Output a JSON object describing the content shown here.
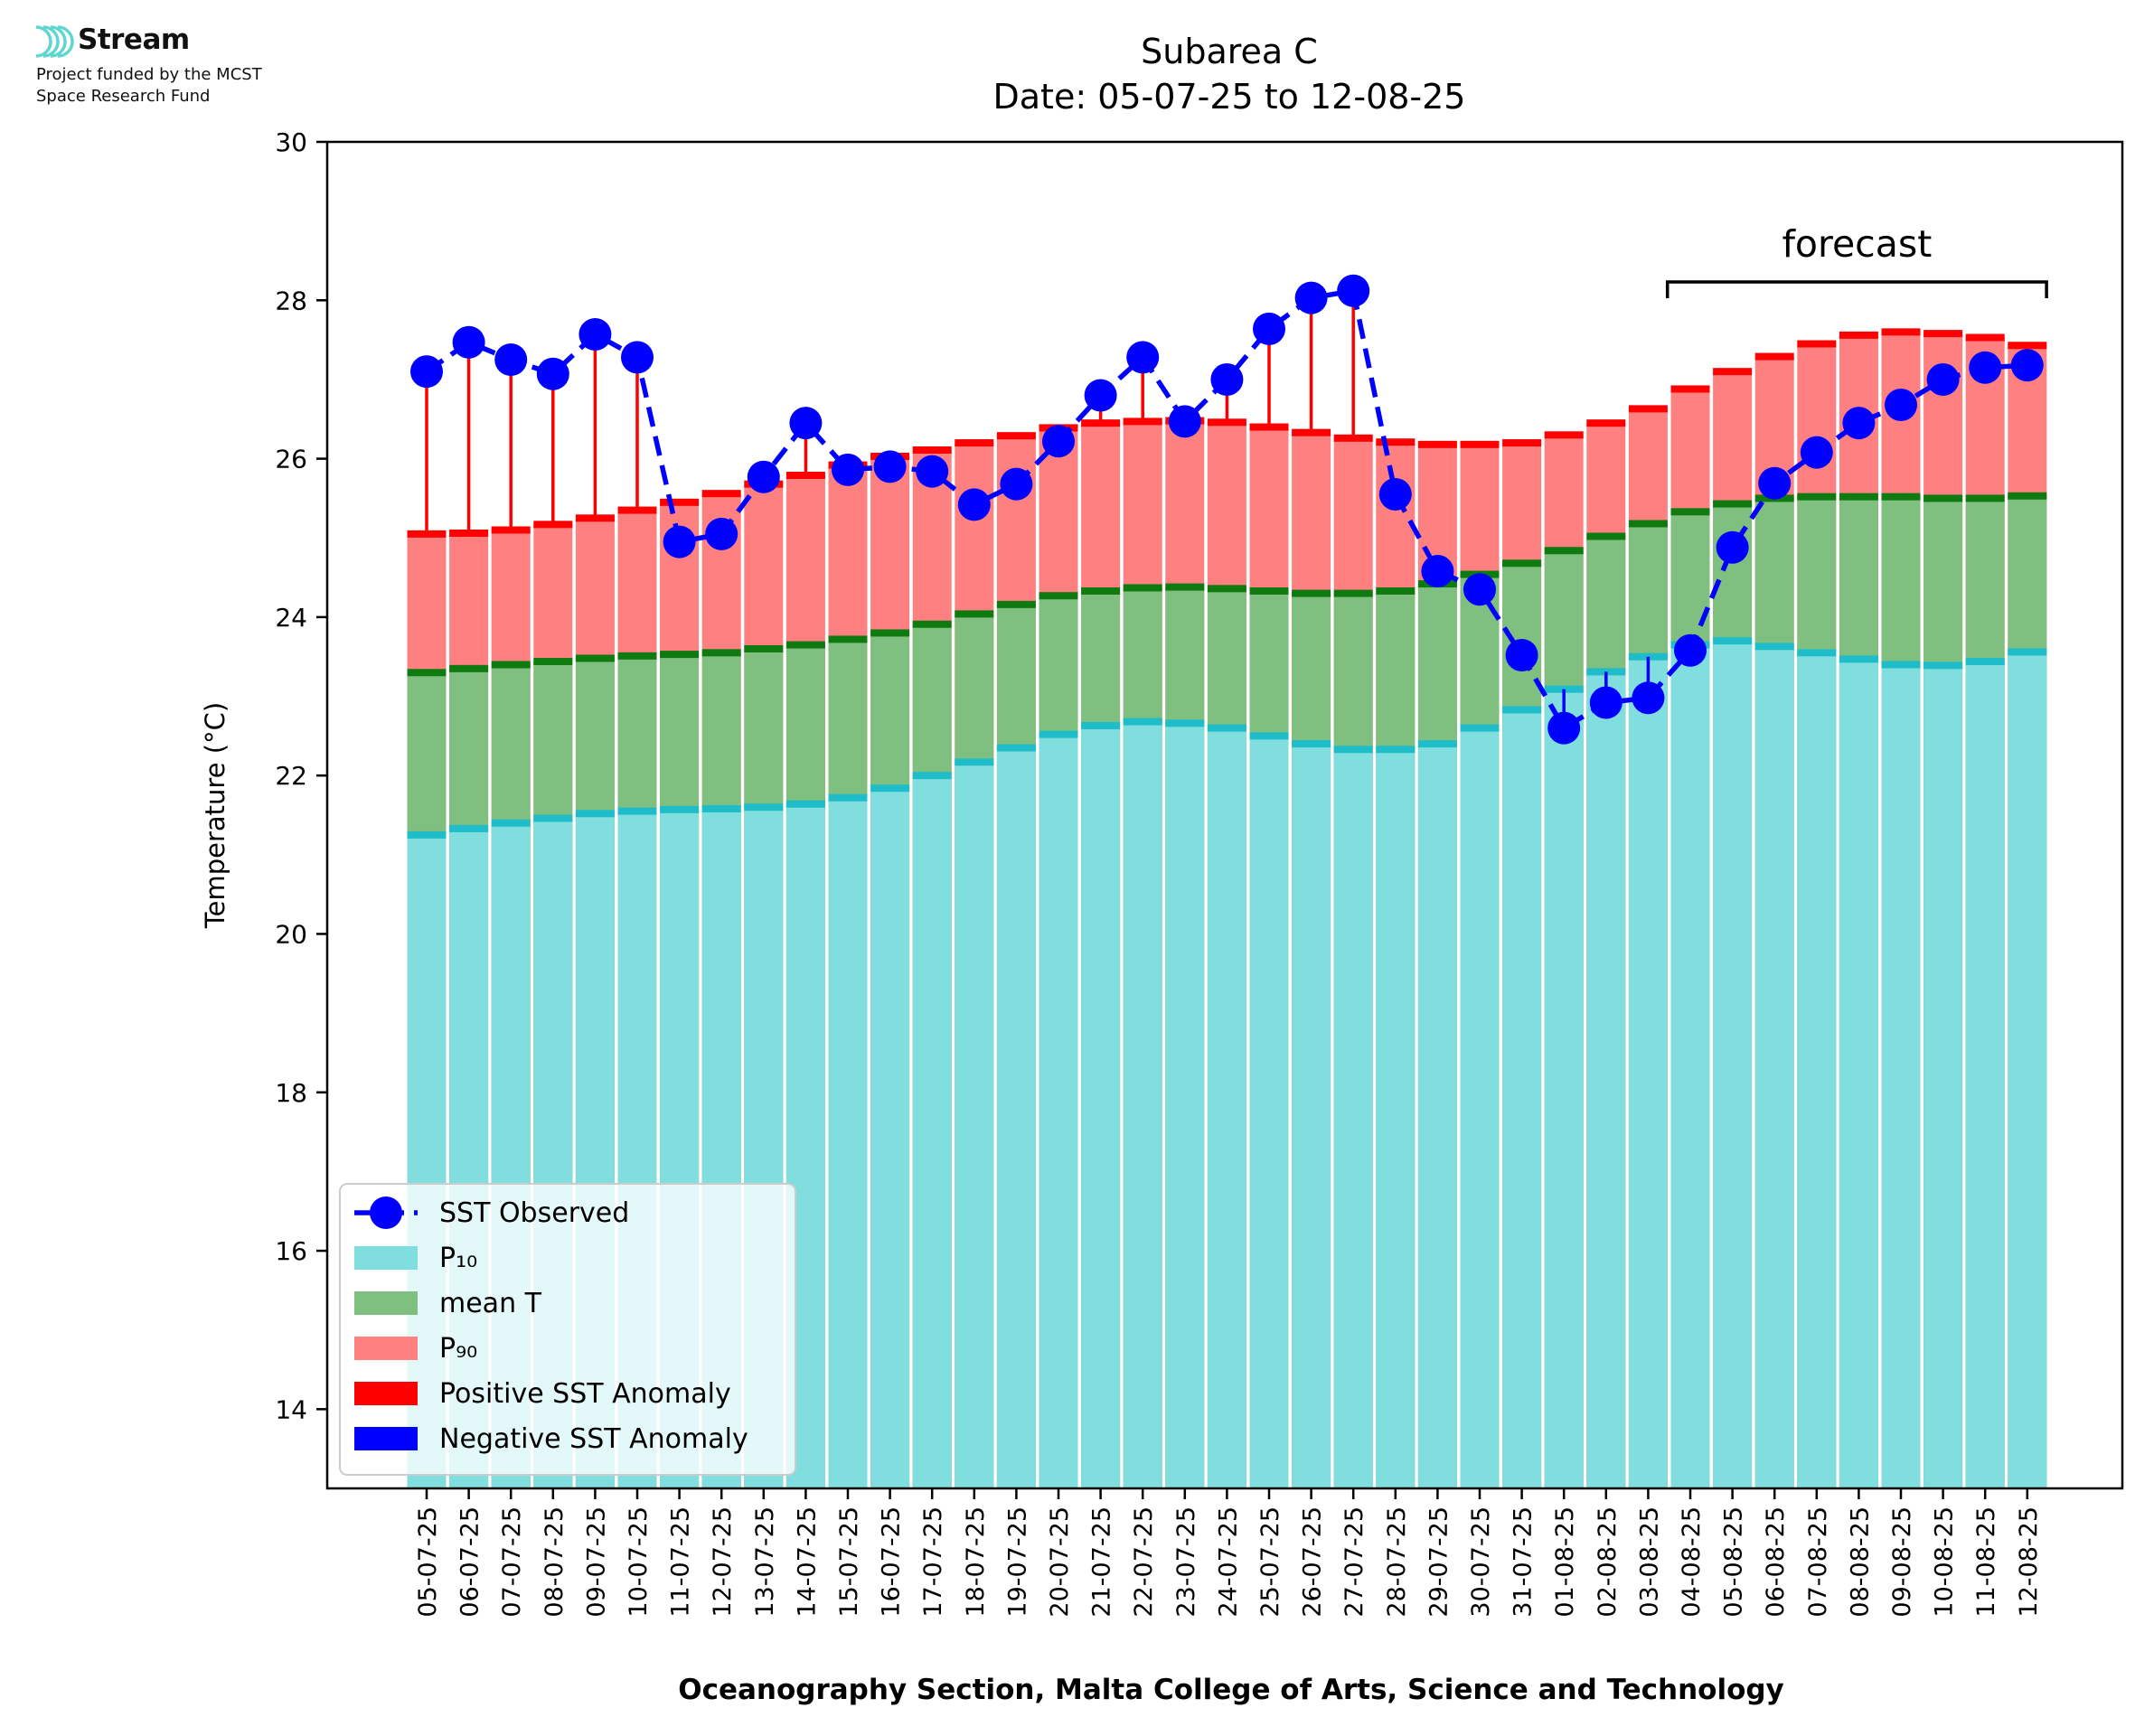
{
  "logo": {
    "name": "Stream",
    "subtitle_line1": "Project funded by the MCST",
    "subtitle_line2": "Space Research Fund"
  },
  "chart_data": {
    "type": "bar",
    "title": "Subarea C",
    "subtitle": "Date: 05-07-25 to 12-08-25",
    "xlabel": "Oceanography Section, Malta College of Arts, Science and Technology",
    "ylabel": "Temperature (°C)",
    "ylim": [
      13,
      30
    ],
    "yticks": [
      14,
      16,
      18,
      20,
      22,
      24,
      26,
      28,
      30
    ],
    "grid": false,
    "legend_position": "bottom-left",
    "annotation": "forecast",
    "forecast_range": [
      "04-08-25",
      "12-08-25"
    ],
    "categories": [
      "05-07-25",
      "06-07-25",
      "07-07-25",
      "08-07-25",
      "09-07-25",
      "10-07-25",
      "11-07-25",
      "12-07-25",
      "13-07-25",
      "14-07-25",
      "15-07-25",
      "16-07-25",
      "17-07-25",
      "18-07-25",
      "19-07-25",
      "20-07-25",
      "21-07-25",
      "22-07-25",
      "23-07-25",
      "24-07-25",
      "25-07-25",
      "26-07-25",
      "27-07-25",
      "28-07-25",
      "29-07-25",
      "30-07-25",
      "31-07-25",
      "01-08-25",
      "02-08-25",
      "03-08-25",
      "04-08-25",
      "05-08-25",
      "06-08-25",
      "07-08-25",
      "08-08-25",
      "09-08-25",
      "10-08-25",
      "11-08-25",
      "12-08-25"
    ],
    "series": [
      {
        "name": "SST Observed",
        "kind": "line",
        "color": "#0000ff",
        "values": [
          27.1,
          27.47,
          27.25,
          27.07,
          27.57,
          27.28,
          24.95,
          25.05,
          25.77,
          26.45,
          25.86,
          25.9,
          25.84,
          25.42,
          25.68,
          26.22,
          26.8,
          27.28,
          26.47,
          27.0,
          27.64,
          28.03,
          28.12,
          25.55,
          24.58,
          24.35,
          23.52,
          22.6,
          22.92,
          22.98,
          23.58,
          24.88,
          25.69,
          26.08,
          26.45,
          26.68,
          27.0,
          27.15,
          27.18
        ]
      },
      {
        "name": "P₁₀",
        "kind": "bar",
        "color": "#80dede",
        "edge_color": "#1fbdc9",
        "values": [
          21.25,
          21.33,
          21.4,
          21.46,
          21.52,
          21.55,
          21.57,
          21.58,
          21.6,
          21.64,
          21.72,
          21.84,
          22.0,
          22.17,
          22.35,
          22.52,
          22.63,
          22.68,
          22.66,
          22.6,
          22.5,
          22.4,
          22.33,
          22.33,
          22.4,
          22.6,
          22.83,
          23.09,
          23.31,
          23.5,
          23.65,
          23.7,
          23.63,
          23.55,
          23.47,
          23.4,
          23.39,
          23.44,
          23.56
        ]
      },
      {
        "name": "mean T",
        "kind": "bar",
        "color": "#7fbf7f",
        "edge_color": "#0f7a0f",
        "values": [
          23.3,
          23.35,
          23.4,
          23.44,
          23.48,
          23.51,
          23.53,
          23.55,
          23.6,
          23.65,
          23.72,
          23.8,
          23.91,
          24.04,
          24.16,
          24.27,
          24.33,
          24.37,
          24.38,
          24.36,
          24.33,
          24.3,
          24.3,
          24.33,
          24.42,
          24.54,
          24.68,
          24.84,
          25.02,
          25.18,
          25.33,
          25.43,
          25.5,
          25.52,
          25.52,
          25.52,
          25.5,
          25.5,
          25.53
        ]
      },
      {
        "name": "P₉₀",
        "kind": "bar",
        "color": "#ff8080",
        "edge_color": "#ff0000",
        "values": [
          25.05,
          25.06,
          25.1,
          25.17,
          25.25,
          25.35,
          25.45,
          25.56,
          25.68,
          25.79,
          25.92,
          26.03,
          26.11,
          26.2,
          26.29,
          26.39,
          26.45,
          26.47,
          26.48,
          26.46,
          26.4,
          26.33,
          26.26,
          26.21,
          26.18,
          26.18,
          26.2,
          26.3,
          26.45,
          26.63,
          26.88,
          27.1,
          27.29,
          27.45,
          27.56,
          27.6,
          27.58,
          27.53,
          27.43
        ]
      },
      {
        "name": "Positive SST Anomaly",
        "kind": "vline",
        "color": "#ff0000"
      },
      {
        "name": "Negative SST Anomaly",
        "kind": "vline",
        "color": "#0000ff"
      }
    ]
  }
}
